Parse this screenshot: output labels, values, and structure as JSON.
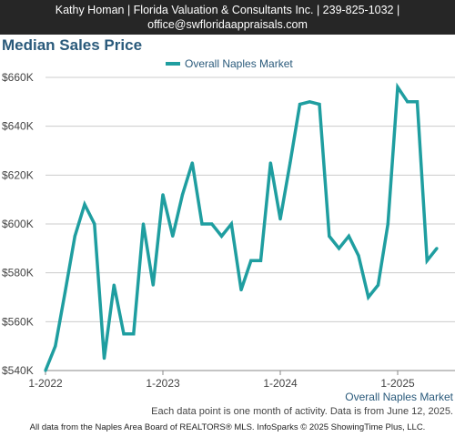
{
  "header": {
    "line1": "Kathy Homan | Florida Valuation & Consultants Inc. | 239-825-1032 |",
    "line2": "office@swfloridaappraisals.com"
  },
  "colors": {
    "series": "#1f9ea0",
    "title": "#2a5a7b",
    "header_bg": "#262626"
  },
  "chart_data": {
    "type": "line",
    "title": "Median Sales Price",
    "series": [
      {
        "name": "Overall Naples Market",
        "x": [
          "2022-01",
          "2022-02",
          "2022-03",
          "2022-04",
          "2022-05",
          "2022-06",
          "2022-07",
          "2022-08",
          "2022-09",
          "2022-10",
          "2022-11",
          "2022-12",
          "2023-01",
          "2023-02",
          "2023-03",
          "2023-04",
          "2023-05",
          "2023-06",
          "2023-07",
          "2023-08",
          "2023-09",
          "2023-10",
          "2023-11",
          "2023-12",
          "2024-01",
          "2024-02",
          "2024-03",
          "2024-04",
          "2024-05",
          "2024-06",
          "2024-07",
          "2024-08",
          "2024-09",
          "2024-10",
          "2024-11",
          "2024-12",
          "2025-01",
          "2025-02",
          "2025-03",
          "2025-04",
          "2025-05"
        ],
        "values": [
          540000,
          550000,
          572000,
          595000,
          608000,
          600000,
          545000,
          575000,
          555000,
          555000,
          600000,
          575000,
          612000,
          595000,
          612000,
          625000,
          600000,
          600000,
          595000,
          600000,
          573000,
          585000,
          585000,
          625000,
          602000,
          625000,
          649000,
          650000,
          649000,
          595000,
          590000,
          595000,
          587000,
          570000,
          575000,
          600000,
          656000,
          650000,
          650000,
          585000,
          590000
        ]
      }
    ],
    "x_ticks": [
      "1-2022",
      "1-2023",
      "1-2024",
      "1-2025"
    ],
    "y_ticks": [
      "$540K",
      "$560K",
      "$580K",
      "$600K",
      "$620K",
      "$640K",
      "$660K"
    ],
    "ylim": [
      540000,
      660000
    ],
    "legend_position": "top-center",
    "grid": true
  },
  "market_label": "Overall Naples Market",
  "note": "Each data point is one month of activity. Data is from June 12, 2025.",
  "footer": "All data from the Naples Area Board of REALTORS® MLS. InfoSparks © 2025 ShowingTime Plus, LLC."
}
